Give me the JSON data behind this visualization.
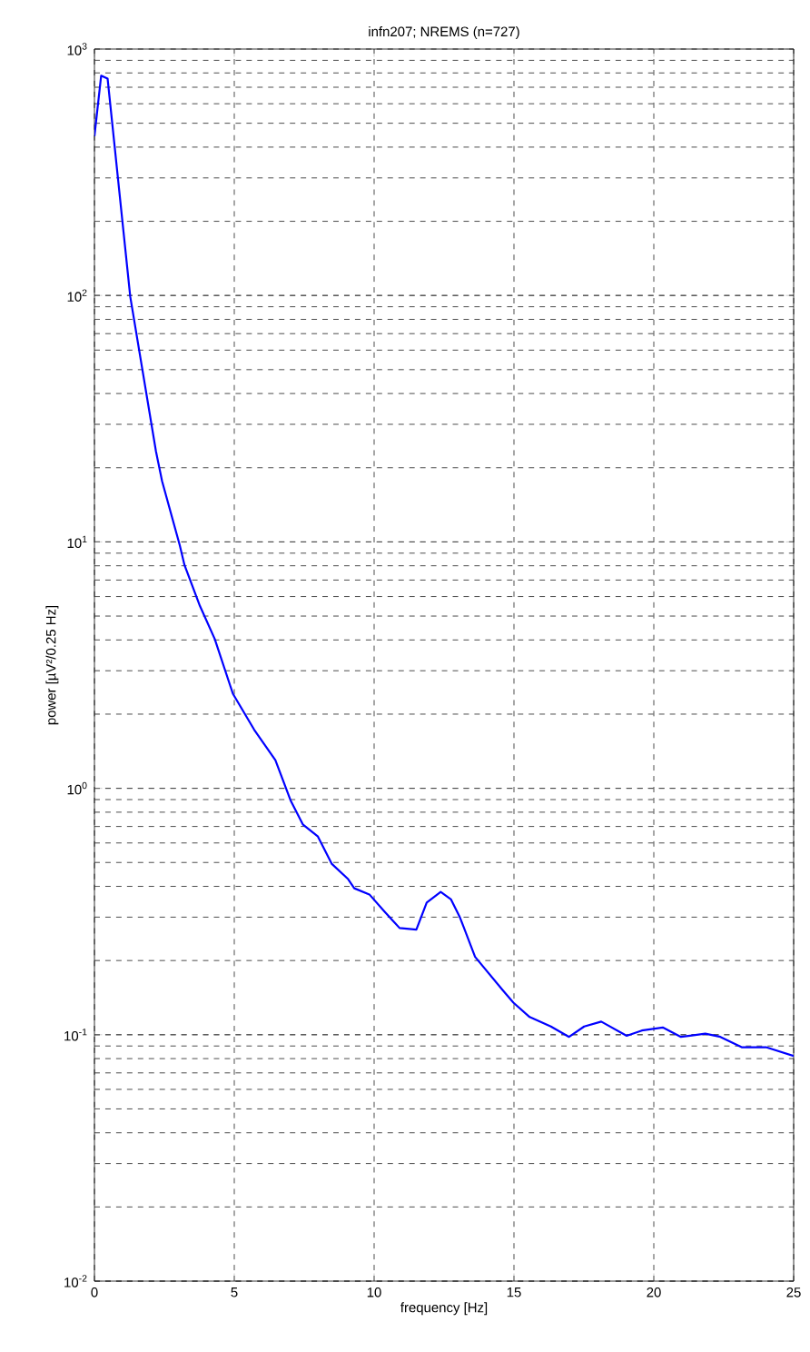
{
  "chart_data": {
    "type": "line",
    "title": "infn207; NREMS (n=727)",
    "xlabel": "frequency [Hz]",
    "ylabel": "power [µV²/0.25 Hz]",
    "log": "y",
    "grid": true,
    "xlim": [
      0,
      25
    ],
    "ylim": [
      0.01,
      1000
    ],
    "xticks": [
      0,
      5,
      10,
      15,
      20,
      25
    ],
    "yticks": [
      {
        "value": 0.01,
        "label": "10$^{-2}$"
      },
      {
        "value": 0.1,
        "label": "10$^{-1}$"
      },
      {
        "value": 1,
        "label": "10$^{0}$"
      },
      {
        "value": 10,
        "label": "10$^{1}$"
      },
      {
        "value": 100,
        "label": "10$^{2}$"
      },
      {
        "value": 1000,
        "label": "10$^{3}$"
      }
    ],
    "series": [
      {
        "color": "#0000ff",
        "x": [
          0,
          0.24,
          0.47,
          1.28,
          2.2,
          2.42,
          3.05,
          3.22,
          3.77,
          4.3,
          4.95,
          5.71,
          6.47,
          7.01,
          7.45,
          7.99,
          8.49,
          9.07,
          9.29,
          9.83,
          10.37,
          10.91,
          11.51,
          11.88,
          12.38,
          12.75,
          13.07,
          13.61,
          14.59,
          14.98,
          15.56,
          16.32,
          16.97,
          17.51,
          18.12,
          19.03,
          19.57,
          20.32,
          20.97,
          21.84,
          22.38,
          23.14,
          24.01,
          25
        ],
        "values": [
          443,
          780,
          759,
          99,
          23.3,
          17.6,
          9.7,
          8.05,
          5.5,
          4.04,
          2.42,
          1.73,
          1.3,
          0.895,
          0.714,
          0.637,
          0.493,
          0.428,
          0.393,
          0.371,
          0.316,
          0.271,
          0.267,
          0.344,
          0.38,
          0.354,
          0.299,
          0.207,
          0.152,
          0.135,
          0.118,
          0.108,
          0.098,
          0.108,
          0.113,
          0.099,
          0.104,
          0.107,
          0.098,
          0.101,
          0.098,
          0.089,
          0.089,
          0.082
        ]
      }
    ]
  }
}
